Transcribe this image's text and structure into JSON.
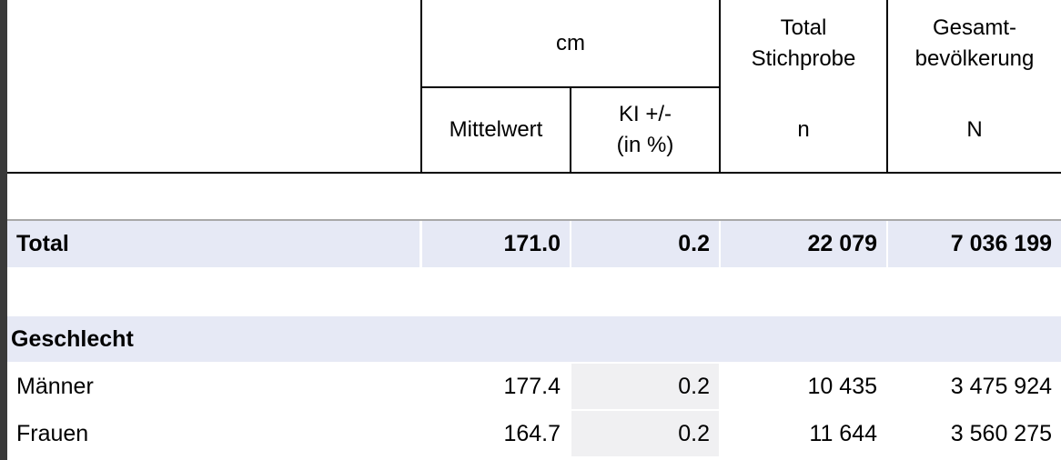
{
  "header": {
    "unit": "cm",
    "total_sample": "Total\nStichprobe",
    "population": "Gesamt-\nbevölkerung",
    "mean": "Mittelwert",
    "ci": "KI +/-\n(in %)",
    "n": "n",
    "N": "N"
  },
  "total_row": {
    "label": "Total",
    "mean": "171.0",
    "ci": "0.2",
    "n": "22 079",
    "N": "7 036 199"
  },
  "section": {
    "title": "Geschlecht"
  },
  "rows": [
    {
      "label": "Männer",
      "mean": "177.4",
      "ci": "0.2",
      "n": "10 435",
      "N": "3 475 924"
    },
    {
      "label": "Frauen",
      "mean": "164.7",
      "ci": "0.2",
      "n": "11 644",
      "N": "3 560 275"
    }
  ]
}
